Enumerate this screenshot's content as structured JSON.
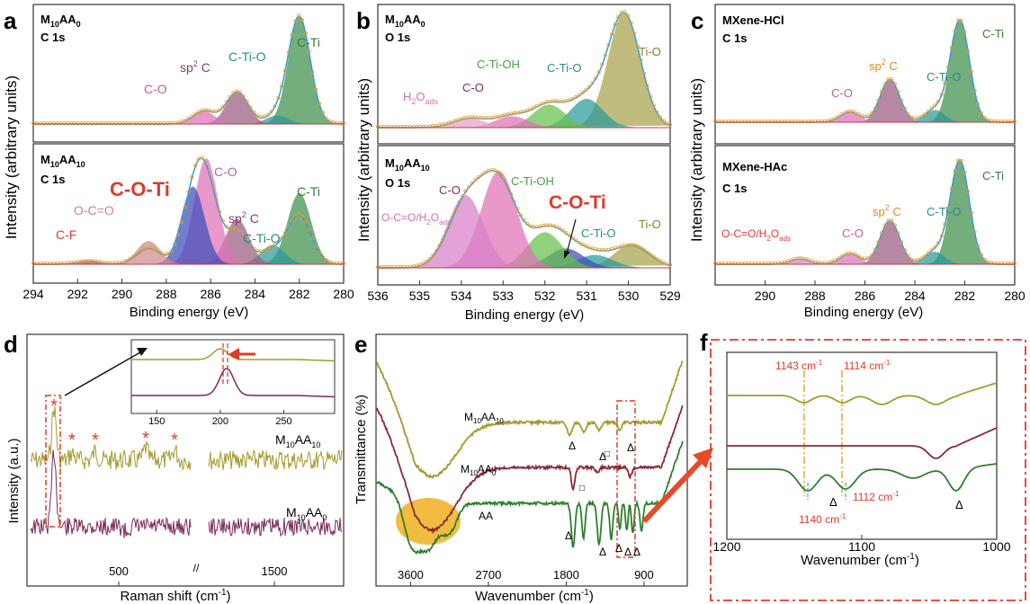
{
  "colors": {
    "xps_peak_c_ti": "#3f8f4a",
    "xps_peak_c_ti_o": "#2a9a9a",
    "xps_peak_sp2": "#9a5a80",
    "xps_peak_c_o": "#e070b8",
    "xps_peak_c_o_ti": "#3c4cb8",
    "xps_peak_o_c_o": "#d08a8a",
    "xps_peak_c_f": "#e03a3a",
    "xps_peak_ti_o": "#a7a24c",
    "xps_peak_c_ti_oh": "#66c04a",
    "raw_points": "#e8a030",
    "fit_line": "#3a9ad0",
    "red_label": "#e03a2a",
    "m10aa10_trace": "#a69a2e",
    "m10aa0_trace": "#8a2a3a",
    "aa_trace": "#2f7f2f",
    "raman_m10aa0": "#7a2a5a",
    "highlight_ellipse": "#f0b020"
  },
  "panels": {
    "a": {
      "letter": "a",
      "top": {
        "l1": "M",
        "l1sub": "10",
        "l2": "AA",
        "l2sub": "0",
        "line2": "C 1s"
      },
      "bottom": {
        "l1": "M",
        "l1sub": "10",
        "l2": "AA",
        "l2sub": "10",
        "line2": "C 1s"
      }
    },
    "b": {
      "letter": "b",
      "top": {
        "l1": "M",
        "l1sub": "10",
        "l2": "AA",
        "l2sub": "0",
        "line2": "O 1s"
      },
      "bottom": {
        "l1": "M",
        "l1sub": "10",
        "l2": "AA",
        "l2sub": "10",
        "line2": "O 1s"
      }
    },
    "c": {
      "letter": "c",
      "top": {
        "line1": "MXene-HCl",
        "line2": "C 1s"
      },
      "bottom": {
        "line1": "MXene-HAc",
        "line2": "C 1s"
      }
    },
    "d": {
      "letter": "d"
    },
    "e": {
      "letter": "e"
    },
    "f": {
      "letter": "f"
    }
  },
  "chart_data": [
    {
      "id": "a",
      "type": "line",
      "xlabel": "Binding energy (eV)",
      "ylabel": "Intensity (arbitrary units)",
      "xlim": [
        294,
        280
      ],
      "xticks": [
        294,
        292,
        290,
        288,
        286,
        284,
        282,
        280
      ],
      "subplots": [
        {
          "sample": "M10AA0",
          "core": "C 1s",
          "peaks": [
            {
              "name": "C-Ti",
              "center": 282.0,
              "height": 1.0
            },
            {
              "name": "C-Ti-O",
              "center": 283.0,
              "height": 0.08
            },
            {
              "name": "sp2 C",
              "center": 284.8,
              "height": 0.3
            },
            {
              "name": "C-O",
              "center": 286.3,
              "height": 0.12
            }
          ]
        },
        {
          "sample": "M10AA10",
          "core": "C 1s",
          "peaks": [
            {
              "name": "C-Ti",
              "center": 282.0,
              "height": 0.55
            },
            {
              "name": "C-Ti-O",
              "center": 283.2,
              "height": 0.15
            },
            {
              "name": "sp2 C",
              "center": 284.8,
              "height": 0.35
            },
            {
              "name": "C-O",
              "center": 286.2,
              "height": 0.82
            },
            {
              "name": "C-O-Ti",
              "center": 286.8,
              "height": 0.6
            },
            {
              "name": "O-C=O",
              "center": 288.8,
              "height": 0.18
            },
            {
              "name": "C-F",
              "center": 291.5,
              "height": 0.03
            }
          ]
        }
      ]
    },
    {
      "id": "b",
      "type": "line",
      "xlabel": "Binding energy (eV)",
      "ylabel": "Intensity (arbitrary units)",
      "xlim": [
        536,
        529
      ],
      "xticks": [
        536,
        535,
        534,
        533,
        532,
        531,
        530,
        529
      ],
      "subplots": [
        {
          "sample": "M10AA0",
          "core": "O 1s",
          "peaks": [
            {
              "name": "Ti-O",
              "center": 530.1,
              "height": 1.0
            },
            {
              "name": "C-Ti-O",
              "center": 531.0,
              "height": 0.25
            },
            {
              "name": "C-Ti-OH",
              "center": 531.9,
              "height": 0.2
            },
            {
              "name": "C-O",
              "center": 532.8,
              "height": 0.1
            },
            {
              "name": "H2Oads",
              "center": 533.8,
              "height": 0.08
            }
          ]
        },
        {
          "sample": "M10AA10",
          "core": "O 1s",
          "peaks": [
            {
              "name": "Ti-O",
              "center": 529.9,
              "height": 0.15
            },
            {
              "name": "C-Ti-O",
              "center": 530.8,
              "height": 0.08
            },
            {
              "name": "C-O-Ti",
              "center": 531.5,
              "height": 0.12
            },
            {
              "name": "C-Ti-OH",
              "center": 532.0,
              "height": 0.22
            },
            {
              "name": "C-O",
              "center": 533.1,
              "height": 0.6
            },
            {
              "name": "O-C=O/H2Oads",
              "center": 533.9,
              "height": 0.45
            }
          ]
        }
      ]
    },
    {
      "id": "c",
      "type": "line",
      "xlabel": "Binding energy (eV)",
      "ylabel": "Intensity (arbitrary units)",
      "xlim": [
        292,
        280
      ],
      "xticks": [
        290,
        288,
        286,
        284,
        282,
        280
      ],
      "subplots": [
        {
          "sample": "MXene-HCl",
          "core": "C 1s",
          "peaks": [
            {
              "name": "C-Ti",
              "center": 282.2,
              "height": 1.0
            },
            {
              "name": "C-Ti-O",
              "center": 283.2,
              "height": 0.12
            },
            {
              "name": "sp2 C",
              "center": 285.0,
              "height": 0.42
            },
            {
              "name": "C-O",
              "center": 286.6,
              "height": 0.1
            }
          ]
        },
        {
          "sample": "MXene-HAc",
          "core": "C 1s",
          "peaks": [
            {
              "name": "C-Ti",
              "center": 282.2,
              "height": 1.0
            },
            {
              "name": "C-Ti-O",
              "center": 283.2,
              "height": 0.12
            },
            {
              "name": "sp2 C",
              "center": 285.0,
              "height": 0.42
            },
            {
              "name": "C-O",
              "center": 286.6,
              "height": 0.1
            },
            {
              "name": "O-C=O/H2Oads",
              "center": 288.6,
              "height": 0.05
            }
          ]
        }
      ]
    },
    {
      "id": "d",
      "type": "line",
      "xlabel": "Raman shift (cm-1)",
      "ylabel": "Intensity (a.u.)",
      "xticks": [
        500,
        1500
      ],
      "series": [
        {
          "name": "M10AA10",
          "peaks_cm1": [
            200,
            380,
            620
          ]
        },
        {
          "name": "M10AA0",
          "peaks_cm1": [
            205
          ]
        }
      ],
      "inset": {
        "xlim": [
          130,
          290
        ],
        "xticks": [
          150,
          200,
          250
        ],
        "peak_shift_cm1": [
          200,
          205
        ]
      }
    },
    {
      "id": "e",
      "type": "line",
      "xlabel": "Wavenumber (cm-1)",
      "ylabel": "Transmittance (%)",
      "xlim": [
        4000,
        400
      ],
      "xticks": [
        3600,
        2700,
        1800,
        900
      ],
      "series": [
        {
          "name": "M10AA10"
        },
        {
          "name": "M10AA0"
        },
        {
          "name": "AA"
        }
      ]
    },
    {
      "id": "f",
      "type": "line",
      "xlabel": "Wavenumber (cm-1)",
      "xlim": [
        1200,
        1000
      ],
      "xticks": [
        1200,
        1100,
        1000
      ],
      "annotations": [
        {
          "label": "1143 cm-1",
          "x": 1143
        },
        {
          "label": "1114 cm-1",
          "x": 1114
        },
        {
          "label": "1140 cm-1",
          "x": 1140
        },
        {
          "label": "1112 cm-1",
          "x": 1112
        }
      ]
    }
  ],
  "labels": {
    "a_axis_label": "Binding energy (eV)",
    "ylabel_abc": "Intensity (arbitrary units)",
    "d_ylabel": "Intensity (a.u.)",
    "d_xlabel": "Raman shift (cm",
    "d_xlabel_sup": "-1",
    "d_xlabel_end": ")",
    "d_tick_500": "500",
    "d_tick_1500": "1500",
    "d_inset_ticks": [
      "150",
      "200",
      "250"
    ],
    "d_m10aa10": "M",
    "d_m10aa10_sub1": "10",
    "d_m10aa10_b": "AA",
    "d_m10aa10_sub2": "10",
    "d_m10aa0": "M",
    "d_m10aa0_sub1": "10",
    "d_m10aa0_b": "AA",
    "d_m10aa0_sub2": "0",
    "e_ylabel": "Transmittance (%)",
    "e_xlabel": "Wavenumber (cm",
    "e_xlabel_sup": "-1",
    "e_xlabel_end": ")",
    "e_ticks": [
      "3600",
      "2700",
      "1800",
      "900"
    ],
    "e_m10aa10": "M",
    "e_m10aa10_sub1": "10",
    "e_m10aa10_b": "AA",
    "e_m10aa10_sub2": "10",
    "e_m10aa0": "M",
    "e_m10aa0_sub1": "10",
    "e_m10aa0_b": "AA",
    "e_m10aa0_sub2": "0",
    "e_aa": "AA",
    "f_xlabel": "Wavenumber (cm",
    "f_xlabel_sup": "-1",
    "f_xlabel_end": ")",
    "f_ticks": [
      "1200",
      "1100",
      "1000"
    ],
    "f_1143": "1143 cm",
    "f_1114": "1114 cm",
    "f_1140": "1140 cm",
    "f_1112": "1112 cm",
    "f_sup": "-1",
    "delta": "Δ",
    "square": "□",
    "star": "*",
    "a_ticks": [
      "294",
      "292",
      "290",
      "288",
      "286",
      "284",
      "282",
      "280"
    ],
    "b_ticks": [
      "536",
      "535",
      "534",
      "533",
      "532",
      "531",
      "530",
      "529"
    ],
    "c_ticks": [
      "290",
      "288",
      "286",
      "284",
      "282",
      "280"
    ],
    "lbl_cti": "C-Ti",
    "lbl_ctio": "C-Ti-O",
    "lbl_sp2": "sp",
    "lbl_sp2_sup": "2",
    "lbl_sp2_c": " C",
    "lbl_co": "C-O",
    "lbl_coti": "C-O-Ti",
    "lbl_oco": "O-C=O",
    "lbl_cf": "C-F",
    "lbl_tio": "Ti-O",
    "lbl_ctioh": "C-Ti-OH",
    "lbl_h2o": "H",
    "lbl_h2o_sub": "2",
    "lbl_h2o_o": "O",
    "lbl_h2o_ads": "ads",
    "lbl_ocoh2o": "O-C=O/H",
    "lbl_ocoh2o_sub": "2",
    "lbl_ocoh2o_o": "O",
    "lbl_ocoh2o_ads": "ads"
  }
}
